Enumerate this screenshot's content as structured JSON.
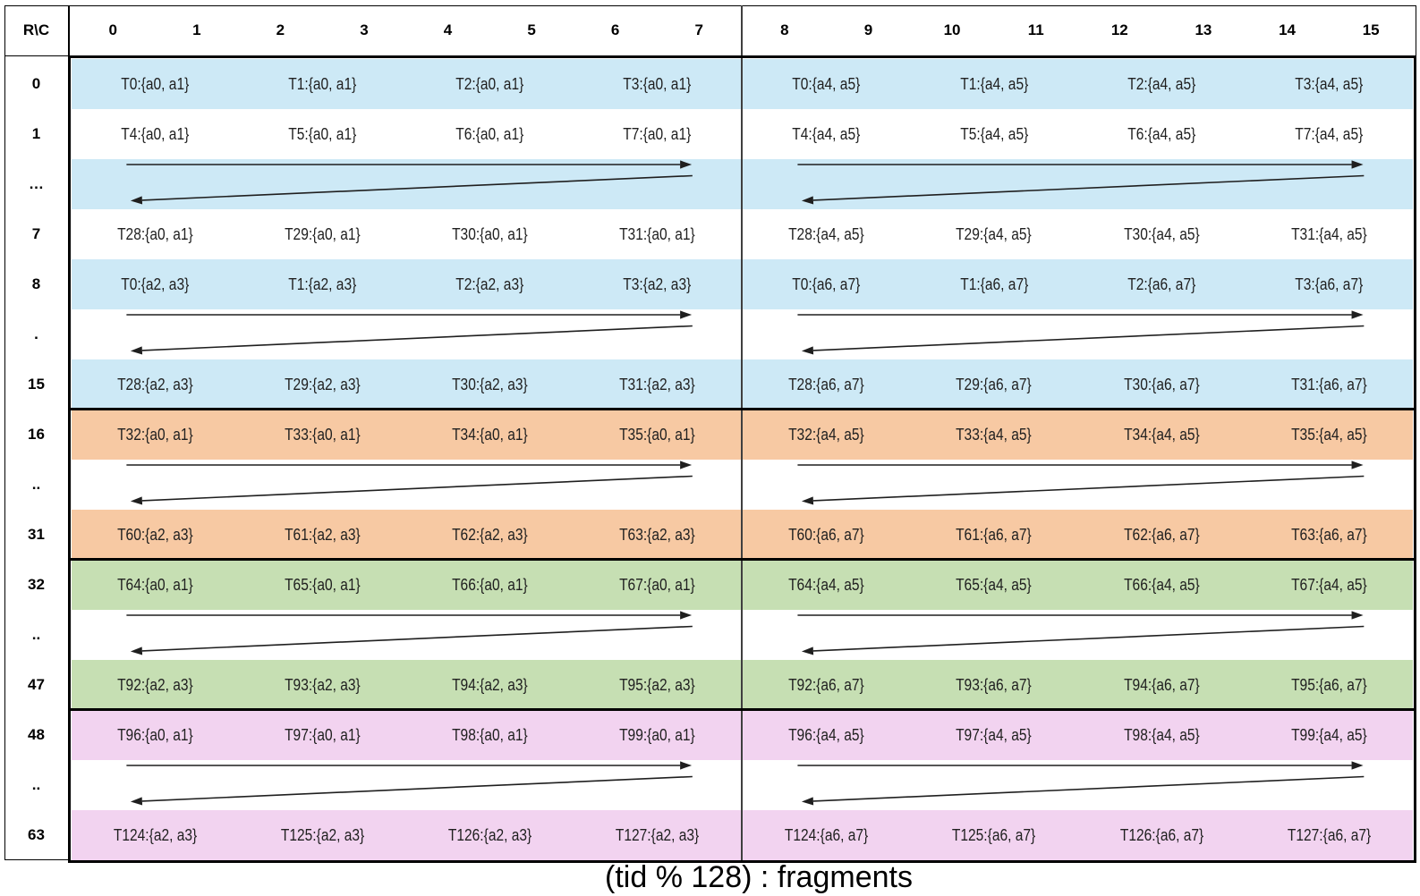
{
  "caption": "(tid % 128) : fragments",
  "corner_label": "R\\C",
  "column_headers": [
    "0",
    "1",
    "2",
    "3",
    "4",
    "5",
    "6",
    "7",
    "8",
    "9",
    "10",
    "11",
    "12",
    "13",
    "14",
    "15"
  ],
  "colors": {
    "blue": "#cde9f6",
    "orange": "#f7c9a3",
    "green": "#c6dfb3",
    "pink": "#f2d3f0",
    "white": "#ffffff",
    "divider": "#3f3f3f",
    "border": "#000000",
    "arrow": "#1f1f1f",
    "cell_text": "#1f1f1f",
    "label_text": "#000000"
  },
  "rows": [
    {
      "label": "0",
      "bg": "blue",
      "cells_left": [
        "T0:{a0, a1}",
        "T1:{a0, a1}",
        "T2:{a0, a1}",
        "T3:{a0, a1}"
      ],
      "cells_right": [
        "T0:{a4, a5}",
        "T1:{a4, a5}",
        "T2:{a4, a5}",
        "T3:{a4, a5}"
      ]
    },
    {
      "label": "1",
      "bg": "white",
      "cells_left": [
        "T4:{a0, a1}",
        "T5:{a0, a1}",
        "T6:{a0, a1}",
        "T7:{a0, a1}"
      ],
      "cells_right": [
        "T4:{a4, a5}",
        "T5:{a4, a5}",
        "T6:{a4, a5}",
        "T7:{a4, a5}"
      ]
    },
    {
      "label": "…",
      "bg": "blue",
      "arrows": true
    },
    {
      "label": "7",
      "bg": "white",
      "cells_left": [
        "T28:{a0, a1}",
        "T29:{a0, a1}",
        "T30:{a0, a1}",
        "T31:{a0, a1}"
      ],
      "cells_right": [
        "T28:{a4, a5}",
        "T29:{a4, a5}",
        "T30:{a4, a5}",
        "T31:{a4, a5}"
      ]
    },
    {
      "label": "8",
      "bg": "blue",
      "cells_left": [
        "T0:{a2, a3}",
        "T1:{a2, a3}",
        "T2:{a2, a3}",
        "T3:{a2, a3}"
      ],
      "cells_right": [
        "T0:{a6, a7}",
        "T1:{a6, a7}",
        "T2:{a6, a7}",
        "T3:{a6, a7}"
      ]
    },
    {
      "label": ".",
      "bg": "white",
      "arrows": true
    },
    {
      "label": "15",
      "bg": "blue",
      "cells_left": [
        "T28:{a2, a3}",
        "T29:{a2, a3}",
        "T30:{a2, a3}",
        "T31:{a2, a3}"
      ],
      "cells_right": [
        "T28:{a6, a7}",
        "T29:{a6, a7}",
        "T30:{a6, a7}",
        "T31:{a6, a7}"
      ]
    },
    {
      "label": "16",
      "bg": "orange",
      "thick_top": true,
      "cells_left": [
        "T32:{a0, a1}",
        "T33:{a0, a1}",
        "T34:{a0, a1}",
        "T35:{a0, a1}"
      ],
      "cells_right": [
        "T32:{a4, a5}",
        "T33:{a4, a5}",
        "T34:{a4, a5}",
        "T35:{a4, a5}"
      ]
    },
    {
      "label": "..",
      "bg": "white",
      "arrows": true
    },
    {
      "label": "31",
      "bg": "orange",
      "cells_left": [
        "T60:{a2, a3}",
        "T61:{a2, a3}",
        "T62:{a2, a3}",
        "T63:{a2, a3}"
      ],
      "cells_right": [
        "T60:{a6, a7}",
        "T61:{a6, a7}",
        "T62:{a6, a7}",
        "T63:{a6, a7}"
      ]
    },
    {
      "label": "32",
      "bg": "green",
      "thick_top": true,
      "cells_left": [
        "T64:{a0, a1}",
        "T65:{a0, a1}",
        "T66:{a0, a1}",
        "T67:{a0, a1}"
      ],
      "cells_right": [
        "T64:{a4, a5}",
        "T65:{a4, a5}",
        "T66:{a4, a5}",
        "T67:{a4, a5}"
      ]
    },
    {
      "label": "..",
      "bg": "white",
      "arrows": true
    },
    {
      "label": "47",
      "bg": "green",
      "cells_left": [
        "T92:{a2, a3}",
        "T93:{a2, a3}",
        "T94:{a2, a3}",
        "T95:{a2, a3}"
      ],
      "cells_right": [
        "T92:{a6, a7}",
        "T93:{a6, a7}",
        "T94:{a6, a7}",
        "T95:{a6, a7}"
      ]
    },
    {
      "label": "48",
      "bg": "pink",
      "thick_top": true,
      "cells_left": [
        "T96:{a0, a1}",
        "T97:{a0, a1}",
        "T98:{a0, a1}",
        "T99:{a0, a1}"
      ],
      "cells_right": [
        "T96:{a4, a5}",
        "T97:{a4, a5}",
        "T98:{a4, a5}",
        "T99:{a4, a5}"
      ]
    },
    {
      "label": "..",
      "bg": "white",
      "arrows": true
    },
    {
      "label": "63",
      "bg": "pink",
      "cells_left": [
        "T124:{a2, a3}",
        "T125:{a2, a3}",
        "T126:{a2, a3}",
        "T127:{a2, a3}"
      ],
      "cells_right": [
        "T124:{a6, a7}",
        "T125:{a6, a7}",
        "T126:{a6, a7}",
        "T127:{a6, a7}"
      ]
    }
  ]
}
